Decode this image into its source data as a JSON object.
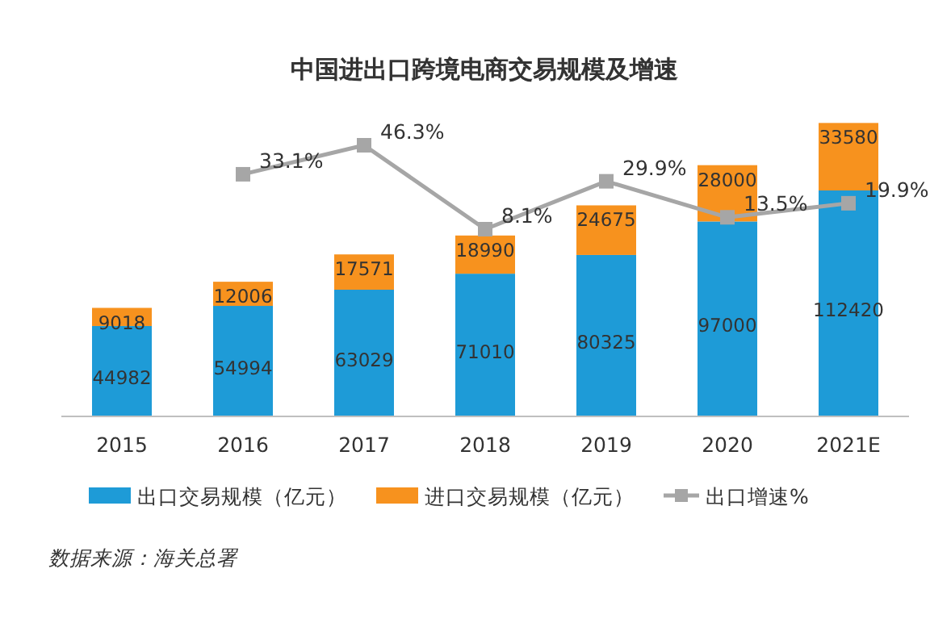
{
  "chart_data": {
    "type": "bar",
    "title": "中国进出口跨境电商交易规模及增速",
    "categories": [
      "2015",
      "2016",
      "2017",
      "2018",
      "2019",
      "2020",
      "2021E"
    ],
    "stacked": true,
    "data_labels": true,
    "legend": "bottom",
    "tick_labels": "x",
    "series": [
      {
        "name": "出口交易规模（亿元）",
        "color": "#1e9bd7",
        "values": [
          44982,
          54994,
          63029,
          71010,
          80325,
          97000,
          112420
        ]
      },
      {
        "name": "进口交易规模（亿元）",
        "color": "#f7921e",
        "values": [
          9018,
          12006,
          17571,
          18990,
          24675,
          28000,
          33580
        ]
      },
      {
        "name": "出口增速%",
        "type": "line",
        "axis": "y2",
        "color": "#a6a6a6",
        "marker": "square",
        "line_style": "solid",
        "values": [
          null,
          33.1,
          46.3,
          8.1,
          29.9,
          13.5,
          19.9
        ],
        "value_labels": [
          null,
          "33.1%",
          "46.3%",
          "8.1%",
          "29.9%",
          "13.5%",
          "19.9%"
        ]
      }
    ],
    "annotations": [
      "数据来源：海关总署"
    ]
  }
}
